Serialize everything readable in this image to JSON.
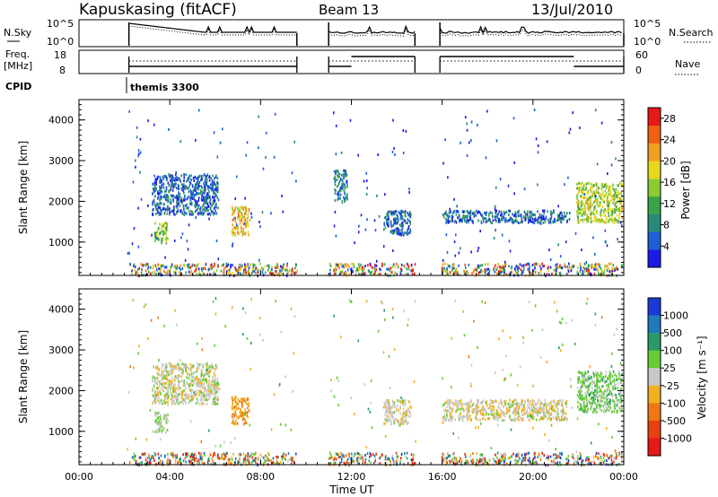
{
  "header": {
    "station": "Kapuskasing (fitACF)",
    "beam": "Beam 13",
    "date": "13/Jul/2010"
  },
  "strips": {
    "nsky_label": "N.Sky",
    "nsky_ticks": [
      "10^5",
      "10^0"
    ],
    "nsearch_label": "N.Search",
    "nsearch_ticks": [
      "10^5",
      "10^0"
    ],
    "freq_label": "Freq.",
    "freq_unit": "[MHz]",
    "freq_ticks": [
      "18",
      "8"
    ],
    "nave_label": "Nave",
    "nave_ticks": [
      "60",
      "0"
    ],
    "cpid_label": "CPID",
    "cpid_value": "themis 3300"
  },
  "chart_data": [
    {
      "type": "heatmap",
      "title": "Power",
      "xlabel": "Time UT",
      "ylabel": "Slant Range [km]",
      "x_ticks": [
        "00:00",
        "04:00",
        "08:00",
        "12:00",
        "16:00",
        "20:00",
        "00:00"
      ],
      "y_ticks": [
        1000,
        2000,
        3000,
        4000
      ],
      "xlim_hours": [
        0,
        24
      ],
      "ylim_km": [
        180,
        4500
      ],
      "colorbar": {
        "label": "Power [dB]",
        "ticks": [
          "4",
          "8",
          "12",
          "16",
          "20",
          "24",
          "28"
        ],
        "range": [
          0,
          30
        ],
        "colors": [
          "#1a1ae6",
          "#1e5fd6",
          "#2a8a7a",
          "#3aa44a",
          "#8ccc33",
          "#e8d81c",
          "#f0a020",
          "#f06014",
          "#e61818"
        ]
      },
      "data_gaps_hours": [
        [
          9.6,
          11.0
        ],
        [
          14.8,
          15.9
        ]
      ],
      "echo_regions": [
        {
          "t": [
            3.2,
            6.1
          ],
          "r": [
            1700,
            2700
          ],
          "value_db": 6
        },
        {
          "t": [
            3.3,
            3.9
          ],
          "r": [
            1000,
            1500
          ],
          "value_db": 14
        },
        {
          "t": [
            6.7,
            7.5
          ],
          "r": [
            1200,
            1900
          ],
          "value_db": 20
        },
        {
          "t": [
            11.2,
            11.8
          ],
          "r": [
            2000,
            2800
          ],
          "value_db": 8
        },
        {
          "t": [
            13.4,
            14.6
          ],
          "r": [
            1200,
            1800
          ],
          "value_db": 6
        },
        {
          "t": [
            16.0,
            21.5
          ],
          "r": [
            1500,
            1800
          ],
          "value_db": 6
        },
        {
          "t": [
            21.9,
            23.9
          ],
          "r": [
            1500,
            2500
          ],
          "value_db": 16
        },
        {
          "t": [
            2.2,
            23.9
          ],
          "r": [
            180,
            500
          ],
          "value_db": 16
        }
      ]
    },
    {
      "type": "heatmap",
      "title": "Velocity",
      "xlabel": "Time UT",
      "ylabel": "Slant Range [km]",
      "x_ticks": [
        "00:00",
        "04:00",
        "08:00",
        "12:00",
        "16:00",
        "20:00",
        "00:00"
      ],
      "y_ticks": [
        1000,
        2000,
        3000,
        4000
      ],
      "xlim_hours": [
        0,
        24
      ],
      "ylim_km": [
        180,
        4500
      ],
      "colorbar": {
        "label": "Velocity [m s⁻¹]",
        "ticks": [
          "1000",
          "500",
          "100",
          "25",
          "-25",
          "-100",
          "-500",
          "-1000"
        ],
        "colors": [
          "#1a3ad8",
          "#1e7ab8",
          "#2a9a6a",
          "#66cc33",
          "#c8c8c8",
          "#f0b020",
          "#f07814",
          "#e84010",
          "#e61818"
        ]
      },
      "data_gaps_hours": [
        [
          9.6,
          11.0
        ],
        [
          14.8,
          15.9
        ]
      ],
      "echo_regions": [
        {
          "t": [
            3.2,
            6.1
          ],
          "r": [
            1700,
            2700
          ],
          "velocity_ms": 0
        },
        {
          "t": [
            3.3,
            3.9
          ],
          "r": [
            1000,
            1500
          ],
          "velocity_ms": 100
        },
        {
          "t": [
            6.7,
            7.5
          ],
          "r": [
            1200,
            1900
          ],
          "velocity_ms": -300
        },
        {
          "t": [
            13.4,
            14.6
          ],
          "r": [
            1200,
            1800
          ],
          "velocity_ms": -50
        },
        {
          "t": [
            16.0,
            21.5
          ],
          "r": [
            1300,
            1800
          ],
          "velocity_ms": -50
        },
        {
          "t": [
            21.9,
            23.9
          ],
          "r": [
            1500,
            2500
          ],
          "velocity_ms": 200
        },
        {
          "t": [
            2.2,
            23.9
          ],
          "r": [
            180,
            500
          ],
          "velocity_ms": -100
        }
      ]
    }
  ]
}
